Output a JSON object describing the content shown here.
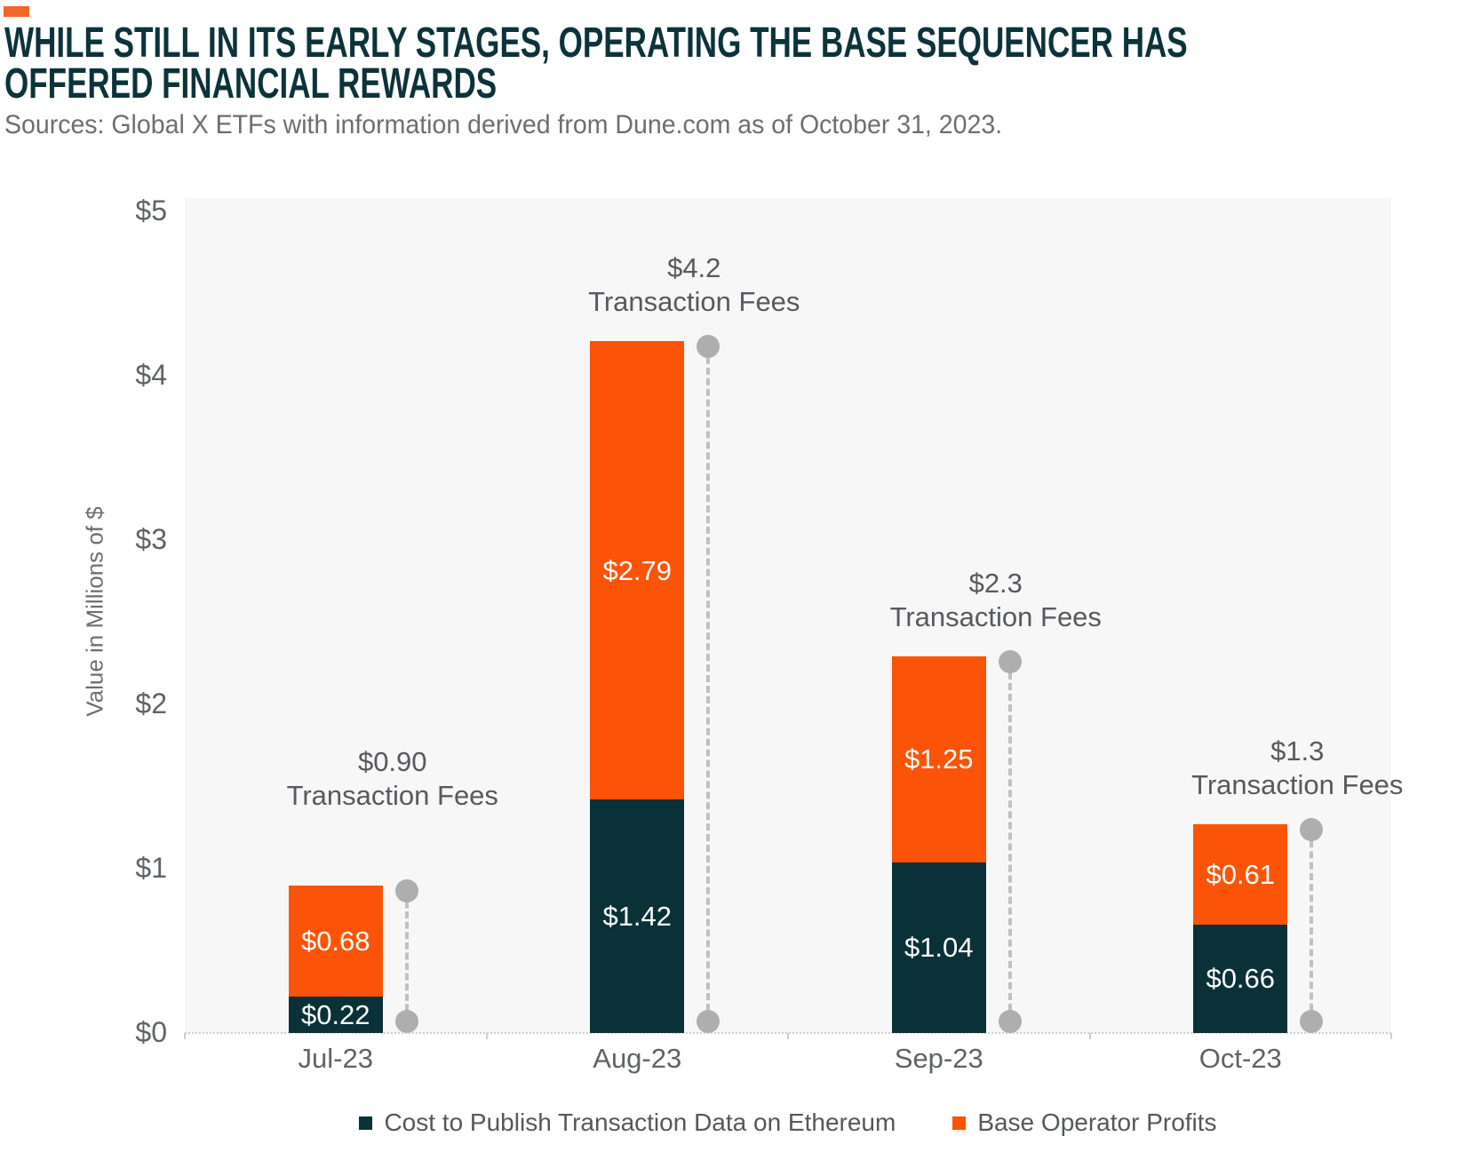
{
  "header": {
    "title_line1": "WHILE STILL IN ITS EARLY STAGES, OPERATING THE BASE SEQUENCER HAS",
    "title_line2": "OFFERED FINANCIAL REWARDS",
    "source": "Sources: Global X ETFs with information derived from Dune.com as of October 31, 2023."
  },
  "chart_data": {
    "type": "bar",
    "stacked": true,
    "title": "While still in its early stages, operating the Base sequencer has offered financial rewards",
    "categories": [
      "Jul-23",
      "Aug-23",
      "Sep-23",
      "Oct-23"
    ],
    "series": [
      {
        "name": "Cost to Publish Transaction Data on Ethereum",
        "color": "#0B3138",
        "values": [
          0.22,
          1.42,
          1.04,
          0.66
        ],
        "labels": [
          "$0.22",
          "$1.42",
          "$1.04",
          "$0.66"
        ]
      },
      {
        "name": "Base Operator Profits",
        "color": "#FB5408",
        "values": [
          0.68,
          2.79,
          1.25,
          0.61
        ],
        "labels": [
          "$0.68",
          "$2.79",
          "$1.25",
          "$0.61"
        ]
      }
    ],
    "totals": {
      "values": [
        0.9,
        4.21,
        2.29,
        1.27
      ],
      "labels": [
        "$0.90",
        "$4.2",
        "$2.3",
        "$1.3"
      ],
      "caption": "Transaction Fees"
    },
    "xlabel": "",
    "ylabel": "Value in Millions of $",
    "y_ticks": [
      "$5",
      "$4",
      "$3",
      "$2",
      "$1",
      "$0"
    ],
    "ylim": [
      0,
      5
    ],
    "grid": false,
    "legend_position": "bottom"
  },
  "colors": {
    "cost_bar": "#0B3138",
    "profit_bar": "#FB5408",
    "accent_block": "#F3672B",
    "title_text": "#0C333A",
    "annotation_text": "#58595C",
    "dashed_marker": "#C0C0C0",
    "plot_background": "#F7F7F7"
  }
}
